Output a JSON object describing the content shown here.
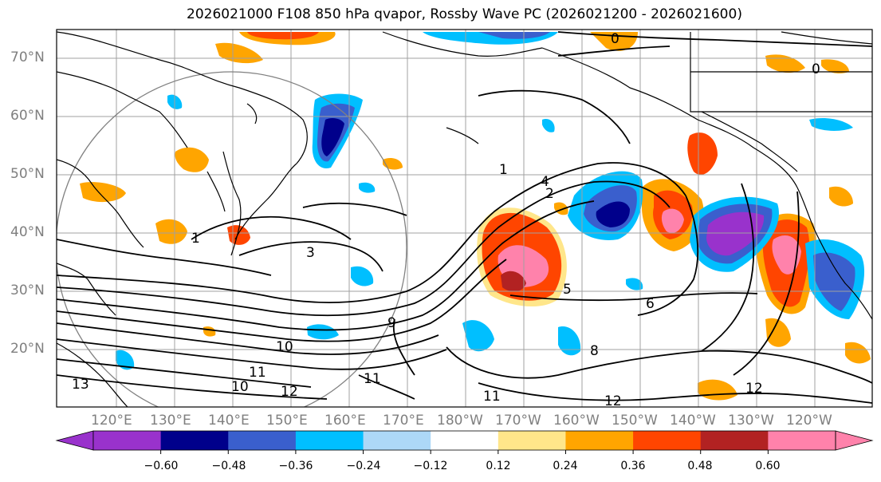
{
  "title": "2026021000 F108 850 hPa qvapor, Rossby Wave PC (2026021200 - 2026021600)",
  "map": {
    "lat_labels": [
      "70°N",
      "60°N",
      "50°N",
      "40°N",
      "30°N",
      "20°N"
    ],
    "lon_labels": [
      "120°E",
      "130°E",
      "140°E",
      "150°E",
      "160°E",
      "170°E",
      "180°W",
      "170°W",
      "160°W",
      "150°W",
      "140°W",
      "130°W",
      "120°W"
    ],
    "contour_labels": [
      "0",
      "0",
      "1",
      "1",
      "2",
      "3",
      "4",
      "5",
      "6",
      "8",
      "9",
      "10",
      "10",
      "11",
      "11",
      "11",
      "12",
      "12",
      "12",
      "13"
    ],
    "colors": {
      "land": "#000000",
      "grid": "#a0a0a0",
      "label": "#7f7f7f"
    }
  },
  "colorbar": {
    "ticks": [
      "−0.60",
      "−0.48",
      "−0.36",
      "−0.24",
      "−0.12",
      "0.12",
      "0.24",
      "0.36",
      "0.48",
      "0.60"
    ],
    "colors": [
      "#9932CC",
      "#00008B",
      "#3A5FCD",
      "#00BFFF",
      "#ADD8F7",
      "#FFFFFF",
      "#FFE68A",
      "#FFA500",
      "#FF4500",
      "#B22222",
      "#FF82AB"
    ]
  }
}
